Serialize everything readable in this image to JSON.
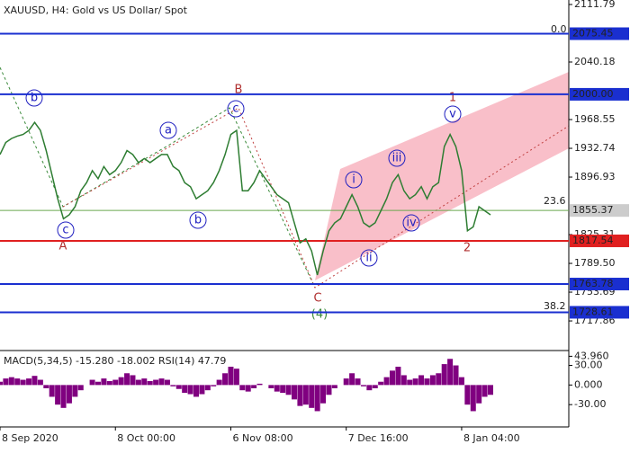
{
  "chart_data": {
    "type": "line",
    "title": "XAUUSD, H4:  Gold vs US Dollar/ Spot",
    "categories": [
      "8 Sep 2020",
      null,
      null,
      null,
      null,
      null,
      null,
      null,
      null,
      null,
      null,
      null,
      null,
      null,
      null,
      null,
      null,
      null,
      null,
      null,
      "8 Oct 00:00",
      null,
      null,
      null,
      null,
      null,
      null,
      null,
      null,
      null,
      null,
      null,
      null,
      null,
      null,
      null,
      null,
      null,
      null,
      null,
      "6 Nov 08:00",
      null,
      null,
      null,
      null,
      null,
      null,
      null,
      null,
      null,
      null,
      null,
      null,
      null,
      null,
      null,
      null,
      null,
      null,
      null,
      "7 Dec 16:00",
      null,
      null,
      null,
      null,
      null,
      null,
      null,
      null,
      null,
      null,
      null,
      null,
      null,
      null,
      null,
      null,
      null,
      null,
      null,
      "8 Jan 04:00",
      null,
      null,
      null,
      null,
      null
    ],
    "series": [
      {
        "name": "XAUUSD",
        "color": "#2e7d32",
        "values": [
          1925,
          1940,
          1945,
          1948,
          1950,
          1955,
          1965,
          1955,
          1930,
          1900,
          1870,
          1845,
          1850,
          1860,
          1880,
          1890,
          1905,
          1895,
          1910,
          1900,
          1905,
          1915,
          1930,
          1925,
          1915,
          1920,
          1915,
          1920,
          1925,
          1925,
          1910,
          1905,
          1890,
          1885,
          1870,
          1875,
          1880,
          1890,
          1905,
          1925,
          1950,
          1955,
          1880,
          1880,
          1890,
          1905,
          1895,
          1885,
          1875,
          1870,
          1865,
          1840,
          1815,
          1820,
          1805,
          1775,
          1805,
          1830,
          1840,
          1845,
          1860,
          1875,
          1860,
          1840,
          1835,
          1840,
          1855,
          1870,
          1890,
          1900,
          1880,
          1870,
          1875,
          1885,
          1870,
          1885,
          1890,
          1935,
          1950,
          1935,
          1905,
          1830,
          1835,
          1860,
          1855,
          1850
        ]
      }
    ],
    "ylim": [
      1681,
      2117.4
    ],
    "yticks": [
      2111.79,
      2040.18,
      1968.55,
      1932.74,
      1896.93,
      1825.31,
      {
        "value": 1789.5,
        "label": "1789.50"
      },
      1753.69,
      1717.86
    ],
    "levels": [
      {
        "value": 2075.45,
        "color": "#1a2fd0"
      },
      {
        "value": 2000,
        "label": "2000.00",
        "color": "#1a2fd0"
      },
      {
        "value": 1855.37,
        "color": "#6aa84f"
      },
      {
        "value": 1817.54,
        "color": "#e02020"
      },
      {
        "value": 1763.78,
        "color": "#1a2fd0"
      },
      {
        "value": 1728.61,
        "color": "#1a2fd0"
      }
    ],
    "fib_labels": [
      "0.0",
      "23.6",
      "38.2"
    ],
    "annotations": [
      "b",
      "c",
      "A",
      "a",
      "b",
      "c",
      "B",
      "C",
      "(4)",
      "i",
      "ii",
      "iii",
      "iv",
      "v",
      "1",
      "2"
    ],
    "macd": {
      "label": "MACD(5,34,5) -15.280 -18.002 RSI(14) 47.79",
      "color": "#800080",
      "ylim": [
        -60,
        50
      ],
      "yticks": [
        {
          "value": 43.96,
          "label": "43.960"
        },
        {
          "value": 30,
          "label": "30.00"
        },
        {
          "value": 0,
          "label": "0.000"
        },
        {
          "value": -30,
          "label": "-30.00"
        }
      ],
      "values": [
        5,
        10,
        12,
        10,
        8,
        10,
        14,
        8,
        -5,
        -18,
        -30,
        -35,
        -28,
        -18,
        -8,
        0,
        8,
        5,
        10,
        6,
        8,
        12,
        18,
        15,
        8,
        10,
        6,
        8,
        10,
        8,
        -2,
        -6,
        -12,
        -14,
        -18,
        -14,
        -8,
        -2,
        8,
        18,
        28,
        25,
        -8,
        -10,
        -5,
        2,
        0,
        -5,
        -10,
        -12,
        -15,
        -22,
        -32,
        -30,
        -35,
        -40,
        -28,
        -15,
        -5,
        0,
        10,
        18,
        10,
        -2,
        -8,
        -5,
        5,
        12,
        22,
        28,
        15,
        8,
        10,
        15,
        10,
        15,
        18,
        32,
        40,
        30,
        12,
        -30,
        -40,
        -28,
        -18,
        -15
      ]
    }
  }
}
